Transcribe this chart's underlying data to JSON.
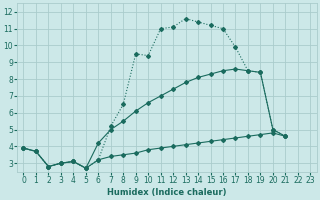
{
  "xlabel": "Humidex (Indice chaleur)",
  "background_color": "#cce8e8",
  "grid_color": "#aacccc",
  "line_color": "#1a6b5e",
  "xlim": [
    -0.5,
    23.5
  ],
  "ylim": [
    2.5,
    12.5
  ],
  "xticks": [
    0,
    1,
    2,
    3,
    4,
    5,
    6,
    7,
    8,
    9,
    10,
    11,
    12,
    13,
    14,
    15,
    16,
    17,
    18,
    19,
    20,
    21,
    22,
    23
  ],
  "yticks": [
    3,
    4,
    5,
    6,
    7,
    8,
    9,
    10,
    11,
    12
  ],
  "series": [
    {
      "x": [
        0,
        1,
        2,
        3,
        4,
        5,
        6,
        7,
        8,
        9,
        10,
        11,
        12,
        13,
        14,
        15,
        16,
        17,
        18,
        19,
        20,
        21
      ],
      "y": [
        3.9,
        3.7,
        2.8,
        3.0,
        3.1,
        2.7,
        3.2,
        5.2,
        6.5,
        9.5,
        9.4,
        11.0,
        11.1,
        11.6,
        11.4,
        11.2,
        11.0,
        9.9,
        8.5,
        8.4,
        5.0,
        4.6
      ]
    },
    {
      "x": [
        0,
        1,
        2,
        3,
        4,
        5,
        6,
        7,
        8,
        9,
        10,
        11,
        12,
        13,
        14,
        15,
        16,
        17,
        18,
        19,
        20,
        21
      ],
      "y": [
        3.9,
        3.7,
        2.8,
        3.0,
        3.1,
        2.7,
        4.2,
        5.0,
        5.5,
        6.1,
        6.6,
        7.0,
        7.4,
        7.8,
        8.1,
        8.3,
        8.5,
        8.6,
        8.5,
        8.4,
        5.0,
        4.6
      ]
    },
    {
      "x": [
        0,
        1,
        2,
        3,
        4,
        5,
        6,
        7,
        8,
        9,
        10,
        11,
        12,
        13,
        14,
        15,
        16,
        17,
        18,
        19,
        20,
        21
      ],
      "y": [
        3.9,
        3.7,
        2.8,
        3.0,
        3.1,
        2.7,
        3.2,
        3.4,
        3.5,
        3.6,
        3.8,
        3.9,
        4.0,
        4.1,
        4.2,
        4.3,
        4.4,
        4.5,
        4.6,
        4.7,
        4.8,
        4.6
      ]
    }
  ]
}
